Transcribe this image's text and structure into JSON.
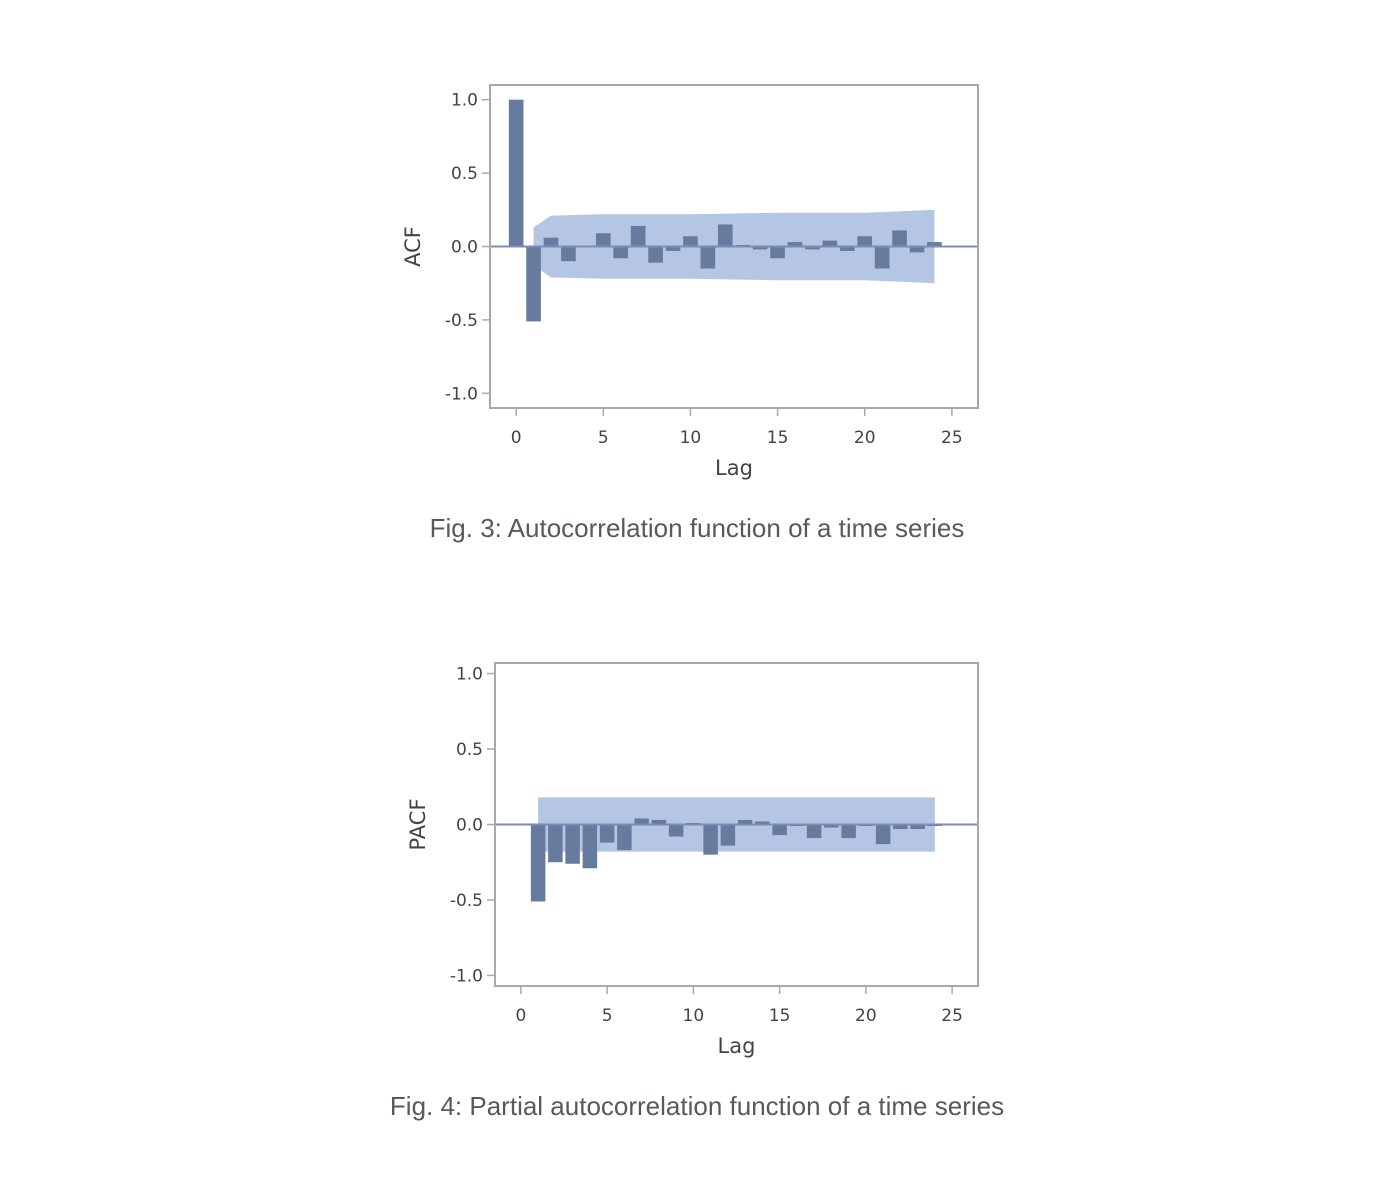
{
  "colors": {
    "bar": "#677b9e",
    "band": "#b5c6e4",
    "zero_line": "#7b8db0",
    "frame": "#a8a8a8"
  },
  "captions": {
    "fig3": "Fig. 3: Autocorrelation function of a time series",
    "fig4": "Fig. 4: Partial autocorrelation function of a time series"
  },
  "chart_data": [
    {
      "type": "bar",
      "ylabel": "ACF",
      "xlabel": "Lag",
      "xlim": [
        -1.5,
        26.5
      ],
      "ylim": [
        -1.1,
        1.1
      ],
      "xticks": [
        0,
        5,
        10,
        15,
        20,
        25
      ],
      "xtick_labels": [
        "0",
        "5",
        "10",
        "15",
        "20",
        "25"
      ],
      "yticks": [
        1.0,
        0.5,
        0.0,
        -0.5,
        -1.0
      ],
      "ytick_labels": [
        "1.0",
        "0.5",
        "0.0",
        "-0.5",
        "-1.0"
      ],
      "lags": [
        0,
        1,
        2,
        3,
        4,
        5,
        6,
        7,
        8,
        9,
        10,
        11,
        12,
        13,
        14,
        15,
        16,
        17,
        18,
        19,
        20,
        21,
        22,
        23,
        24
      ],
      "values": [
        1.0,
        -0.51,
        0.06,
        -0.1,
        0.0,
        0.09,
        -0.08,
        0.14,
        -0.11,
        -0.03,
        0.07,
        -0.15,
        0.15,
        0.01,
        -0.02,
        -0.08,
        0.03,
        -0.02,
        0.04,
        -0.03,
        0.07,
        -0.15,
        0.11,
        -0.04,
        0.03
      ],
      "confidence_band": {
        "lags": [
          1,
          2,
          5,
          10,
          15,
          20,
          24
        ],
        "upper": [
          0.13,
          0.21,
          0.22,
          0.22,
          0.23,
          0.23,
          0.25
        ],
        "lower": [
          -0.13,
          -0.21,
          -0.22,
          -0.22,
          -0.23,
          -0.23,
          -0.25
        ]
      }
    },
    {
      "type": "bar",
      "ylabel": "PACF",
      "xlabel": "Lag",
      "xlim": [
        -1.5,
        26.5
      ],
      "ylim": [
        -1.07,
        1.07
      ],
      "xticks": [
        0,
        5,
        10,
        15,
        20,
        25
      ],
      "xtick_labels": [
        "0",
        "5",
        "10",
        "15",
        "20",
        "25"
      ],
      "yticks": [
        1.0,
        0.5,
        0.0,
        -0.5,
        -1.0
      ],
      "ytick_labels": [
        "1.0",
        "0.5",
        "0.0",
        "-0.5",
        "-1.0"
      ],
      "lags": [
        1,
        2,
        3,
        4,
        5,
        6,
        7,
        8,
        9,
        10,
        11,
        12,
        13,
        14,
        15,
        16,
        17,
        18,
        19,
        20,
        21,
        22,
        23,
        24
      ],
      "values": [
        -0.51,
        -0.25,
        -0.26,
        -0.29,
        -0.12,
        -0.17,
        0.04,
        0.03,
        -0.08,
        0.01,
        -0.2,
        -0.14,
        0.03,
        0.02,
        -0.07,
        -0.01,
        -0.09,
        -0.02,
        -0.09,
        -0.01,
        -0.13,
        -0.03,
        -0.03,
        -0.01
      ],
      "confidence_band": {
        "lags": [
          1,
          24
        ],
        "upper": [
          0.18,
          0.18
        ],
        "lower": [
          -0.18,
          -0.18
        ]
      }
    }
  ]
}
